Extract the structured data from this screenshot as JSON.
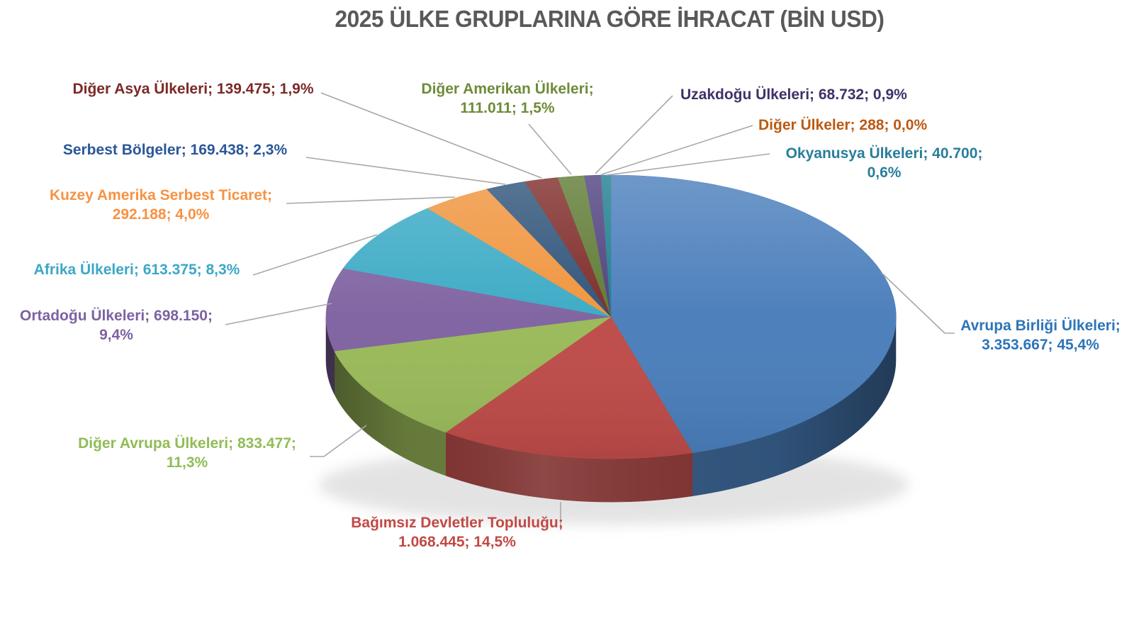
{
  "title": "2025 ÜLKE GRUPLARINA GÖRE İHRACAT (BİN USD)",
  "title_color": "#595959",
  "leader_line_color": "#A8A8A8",
  "background_color": "#FFFFFF",
  "chart_data": {
    "type": "pie",
    "title": "2025 ÜLKE GRUPLARINA GÖRE İHRACAT (BİN USD)",
    "unit": "BİN USD",
    "effect": "3d",
    "start_angle_deg": 0,
    "direction": "clockwise",
    "legend": "none",
    "label_format": "category; value; percent (callout labels with leader lines)",
    "slices": [
      {
        "key": "avrupa-birligi-ulkeleri",
        "label": "Avrupa Birliği Ülkeleri",
        "value": 3353667,
        "value_text": "3.353.667",
        "pct_text": "45,4%",
        "label_text": "Avrupa Birliği Ülkeleri; 3.353.667; 45,4%",
        "color": "#4A7EBB",
        "label_color": "#2E74B8"
      },
      {
        "key": "bagimsiz-devletler-toplulugu",
        "label": "Bağımsız Devletler Topluluğu",
        "value": 1068445,
        "value_text": "1.068.445",
        "pct_text": "14,5%",
        "label_text": "Bağımsız Devletler Topluluğu; 1.068.445; 14,5%",
        "color": "#BE4B48",
        "label_color": "#C24945"
      },
      {
        "key": "diger-avrupa-ulkeleri",
        "label": "Diğer Avrupa Ülkeleri",
        "value": 833477,
        "value_text": "833.477",
        "pct_text": "11,3%",
        "label_text": "Diğer Avrupa Ülkeleri; 833.477; 11,3%",
        "color": "#9ABA59",
        "label_color": "#90BC56"
      },
      {
        "key": "ortadogu-ulkeleri",
        "label": "Ortadoğu Ülkeleri",
        "value": 698150,
        "value_text": "698.150",
        "pct_text": "9,4%",
        "label_text": "Ortadoğu Ülkeleri; 698.150; 9,4%",
        "color": "#7F63A1",
        "label_color": "#7D62A2"
      },
      {
        "key": "afrika-ulkeleri",
        "label": "Afrika Ülkeleri",
        "value": 613375,
        "value_text": "613.375",
        "pct_text": "8,3%",
        "label_text": "Afrika Ülkeleri; 613.375; 8,3%",
        "color": "#3BAAC5",
        "label_color": "#3BA7C7"
      },
      {
        "key": "kuzey-amerika-serbest-ticaret",
        "label": "Kuzey Amerika Serbest Ticaret",
        "value": 292188,
        "value_text": "292.188",
        "pct_text": "4,0%",
        "label_text": "Kuzey Amerika Serbest Ticaret; 292.188; 4,0%",
        "color": "#F0943D",
        "label_color": "#F79243"
      },
      {
        "key": "serbest-bolgeler",
        "label": "Serbest Bölgeler",
        "value": 169438,
        "value_text": "169.438",
        "pct_text": "2,3%",
        "label_text": "Serbest Bölgeler; 169.438; 2,3%",
        "color": "#2E5379",
        "label_color": "#2A5798"
      },
      {
        "key": "diger-asya-ulkeleri",
        "label": "Diğer Asya Ülkeleri",
        "value": 139475,
        "value_text": "139.475",
        "pct_text": "1,9%",
        "label_text": "Diğer Asya Ülkeleri; 139.475; 1,9%",
        "color": "#7E2B28",
        "label_color": "#7B2927"
      },
      {
        "key": "diger-amerikan-ulkeleri",
        "label": "Diğer Amerikan Ülkeleri",
        "value": 111011,
        "value_text": "111.011",
        "pct_text": "1,5%",
        "label_text": "Diğer Amerikan Ülkeleri; 111.011; 1,5%",
        "color": "#5E7A33",
        "label_color": "#6E8B3A"
      },
      {
        "key": "uzakdogu-ulkeleri",
        "label": "Uzakdoğu Ülkeleri",
        "value": 68732,
        "value_text": "68.732",
        "pct_text": "0,9%",
        "label_text": "Uzakdoğu Ülkeleri; 68.732; 0,9%",
        "color": "#4E4080",
        "label_color": "#403168"
      },
      {
        "key": "diger-ulkeler",
        "label": "Diğer Ülkeler",
        "value": 288,
        "value_text": "288",
        "pct_text": "0,0%",
        "label_text": "Diğer Ülkeler; 288; 0,0%",
        "color": "#B65708",
        "label_color": "#BC5A12"
      },
      {
        "key": "okyanusya-ulkeleri",
        "label": "Okyanusya Ülkeleri",
        "value": 40700,
        "value_text": "40.700",
        "pct_text": "0,6%",
        "label_text": "Okyanusya Ülkeleri; 40.700; 0,6%",
        "color": "#1E7D90",
        "label_color": "#287E9B"
      }
    ]
  }
}
